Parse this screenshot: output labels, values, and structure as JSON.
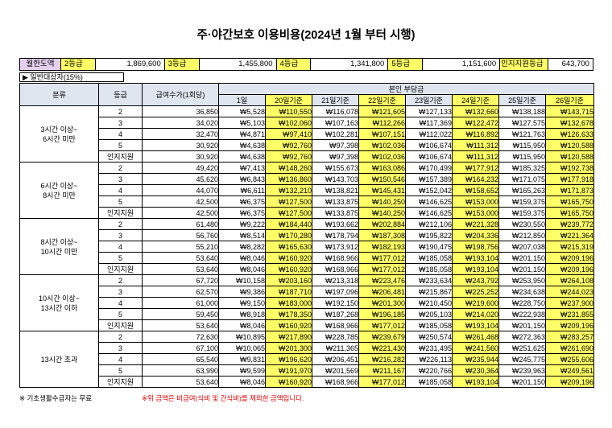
{
  "title": "주·야간보호 이용비용(2024년 1월 부터 시행)",
  "limits": {
    "label": "월한도액",
    "items": [
      {
        "grade": "2등급",
        "amount": "1,869,600"
      },
      {
        "grade": "3등급",
        "amount": "1,455,800"
      },
      {
        "grade": "4등급",
        "amount": "1,341,800"
      },
      {
        "grade": "5등급",
        "amount": "1,151,600"
      },
      {
        "grade": "인지지원등급",
        "amount": "643,700"
      }
    ]
  },
  "general_label": "▶ 일반대상자(15%)",
  "headers": {
    "category": "분류",
    "grade": "등급",
    "fee": "급여수가(1회당)",
    "burden": "본인 부담금",
    "days": [
      "1일",
      "20일기준",
      "21일기준",
      "22일기준",
      "23일기준",
      "24일기준",
      "25일기준",
      "26일기준"
    ]
  },
  "groups": [
    {
      "label": "3시간 이상~\n6시간 미만",
      "rows": [
        {
          "grade": "2",
          "fee": "36,850",
          "v": [
            "₩5,528",
            "₩110,550",
            "₩116,078",
            "₩121,605",
            "₩127,133",
            "₩132,660",
            "₩138,188",
            "₩143,715"
          ]
        },
        {
          "grade": "3",
          "fee": "34,020",
          "v": [
            "₩5,103",
            "₩102,060",
            "₩107,163",
            "₩112,266",
            "₩117,369",
            "₩122,472",
            "₩127,575",
            "₩132,678"
          ]
        },
        {
          "grade": "4",
          "fee": "32,470",
          "v": [
            "₩4,871",
            "₩97,410",
            "₩102,281",
            "₩107,151",
            "₩112,022",
            "₩116,892",
            "₩121,763",
            "₩126,633"
          ]
        },
        {
          "grade": "5",
          "fee": "30,920",
          "v": [
            "₩4,638",
            "₩92,760",
            "₩97,398",
            "₩102,036",
            "₩106,674",
            "₩111,312",
            "₩115,950",
            "₩120,588"
          ]
        },
        {
          "grade": "인지지원",
          "fee": "30,920",
          "v": [
            "₩4,638",
            "₩92,760",
            "₩97,398",
            "₩102,036",
            "₩106,674",
            "₩111,312",
            "₩115,950",
            "₩120,588"
          ]
        }
      ]
    },
    {
      "label": "6시간 이상~\n8시간 미만",
      "rows": [
        {
          "grade": "2",
          "fee": "49,420",
          "v": [
            "₩7,413",
            "₩148,260",
            "₩155,673",
            "₩163,086",
            "₩170,499",
            "₩177,912",
            "₩185,325",
            "₩192,738"
          ]
        },
        {
          "grade": "3",
          "fee": "45,620",
          "v": [
            "₩6,843",
            "₩136,860",
            "₩143,703",
            "₩150,546",
            "₩157,389",
            "₩164,232",
            "₩171,075",
            "₩177,918"
          ]
        },
        {
          "grade": "4",
          "fee": "44,070",
          "v": [
            "₩6,611",
            "₩132,210",
            "₩138,821",
            "₩145,431",
            "₩152,042",
            "₩158,652",
            "₩165,263",
            "₩171,873"
          ]
        },
        {
          "grade": "5",
          "fee": "42,500",
          "v": [
            "₩6,375",
            "₩127,500",
            "₩133,875",
            "₩140,250",
            "₩146,625",
            "₩153,000",
            "₩159,375",
            "₩165,750"
          ]
        },
        {
          "grade": "인지지원",
          "fee": "42,500",
          "v": [
            "₩6,375",
            "₩127,500",
            "₩133,875",
            "₩140,250",
            "₩146,625",
            "₩153,000",
            "₩159,375",
            "₩165,750"
          ]
        }
      ]
    },
    {
      "label": "8시간 이상~\n10시간 미만",
      "rows": [
        {
          "grade": "2",
          "fee": "61,480",
          "v": [
            "₩9,222",
            "₩184,440",
            "₩193,662",
            "₩202,884",
            "₩212,106",
            "₩221,328",
            "₩230,550",
            "₩239,772"
          ]
        },
        {
          "grade": "3",
          "fee": "56,760",
          "v": [
            "₩8,514",
            "₩170,280",
            "₩178,794",
            "₩187,308",
            "₩195,822",
            "₩204,336",
            "₩212,850",
            "₩221,364"
          ]
        },
        {
          "grade": "4",
          "fee": "55,210",
          "v": [
            "₩8,282",
            "₩165,630",
            "₩173,912",
            "₩182,193",
            "₩190,475",
            "₩198,756",
            "₩207,038",
            "₩215,319"
          ]
        },
        {
          "grade": "5",
          "fee": "53,640",
          "v": [
            "₩8,046",
            "₩160,920",
            "₩168,966",
            "₩177,012",
            "₩185,058",
            "₩193,104",
            "₩201,150",
            "₩209,196"
          ]
        },
        {
          "grade": "인지지원",
          "fee": "53,640",
          "v": [
            "₩8,046",
            "₩160,920",
            "₩168,966",
            "₩177,012",
            "₩185,058",
            "₩193,104",
            "₩201,150",
            "₩209,196"
          ]
        }
      ]
    },
    {
      "label": "10시간 이상~\n13시간 이하",
      "rows": [
        {
          "grade": "2",
          "fee": "67,720",
          "v": [
            "₩10,158",
            "₩203,160",
            "₩213,318",
            "₩223,476",
            "₩233,634",
            "₩243,792",
            "₩253,950",
            "₩264,108"
          ]
        },
        {
          "grade": "3",
          "fee": "62,570",
          "v": [
            "₩9,386",
            "₩187,710",
            "₩197,096",
            "₩206,481",
            "₩215,867",
            "₩225,252",
            "₩234,638",
            "₩244,023"
          ]
        },
        {
          "grade": "4",
          "fee": "61,000",
          "v": [
            "₩9,150",
            "₩183,000",
            "₩192,150",
            "₩201,300",
            "₩210,450",
            "₩219,600",
            "₩228,750",
            "₩237,900"
          ]
        },
        {
          "grade": "5",
          "fee": "59,450",
          "v": [
            "₩8,918",
            "₩178,350",
            "₩187,268",
            "₩196,185",
            "₩205,103",
            "₩214,020",
            "₩222,938",
            "₩231,855"
          ]
        },
        {
          "grade": "인지지원",
          "fee": "53,640",
          "v": [
            "₩8,046",
            "₩160,920",
            "₩168,966",
            "₩177,012",
            "₩185,058",
            "₩193,104",
            "₩201,150",
            "₩209,196"
          ]
        }
      ]
    },
    {
      "label": "13시간 초과",
      "rows": [
        {
          "grade": "2",
          "fee": "72,630",
          "v": [
            "₩10,895",
            "₩217,890",
            "₩228,785",
            "₩239,679",
            "₩250,574",
            "₩261,468",
            "₩272,363",
            "₩283,257"
          ]
        },
        {
          "grade": "3",
          "fee": "67,100",
          "v": [
            "₩10,065",
            "₩201,300",
            "₩211,365",
            "₩221,430",
            "₩231,495",
            "₩241,560",
            "₩251,625",
            "₩261,690"
          ]
        },
        {
          "grade": "4",
          "fee": "65,540",
          "v": [
            "₩9,831",
            "₩196,620",
            "₩206,451",
            "₩216,282",
            "₩226,113",
            "₩235,944",
            "₩245,775",
            "₩255,606"
          ]
        },
        {
          "grade": "5",
          "fee": "63,990",
          "v": [
            "₩9,599",
            "₩191,970",
            "₩201,569",
            "₩211,167",
            "₩220,766",
            "₩230,364",
            "₩239,963",
            "₩249,561"
          ]
        },
        {
          "grade": "인지지원",
          "fee": "53,640",
          "v": [
            "₩8,046",
            "₩160,920",
            "₩168,966",
            "₩177,012",
            "₩185,058",
            "₩193,104",
            "₩201,150",
            "₩209,196"
          ]
        }
      ]
    }
  ],
  "footnote_left": "※ 기초생활수급자는 무료",
  "footnote_right": "※위 금액은 비급여(식비 및 간식비)를 제외한 금액입니다.",
  "colors": {
    "highlight": "#ffff66",
    "header": "#dfe6ef",
    "limit_label": "#e6cfee",
    "note_red": "#e00000"
  }
}
